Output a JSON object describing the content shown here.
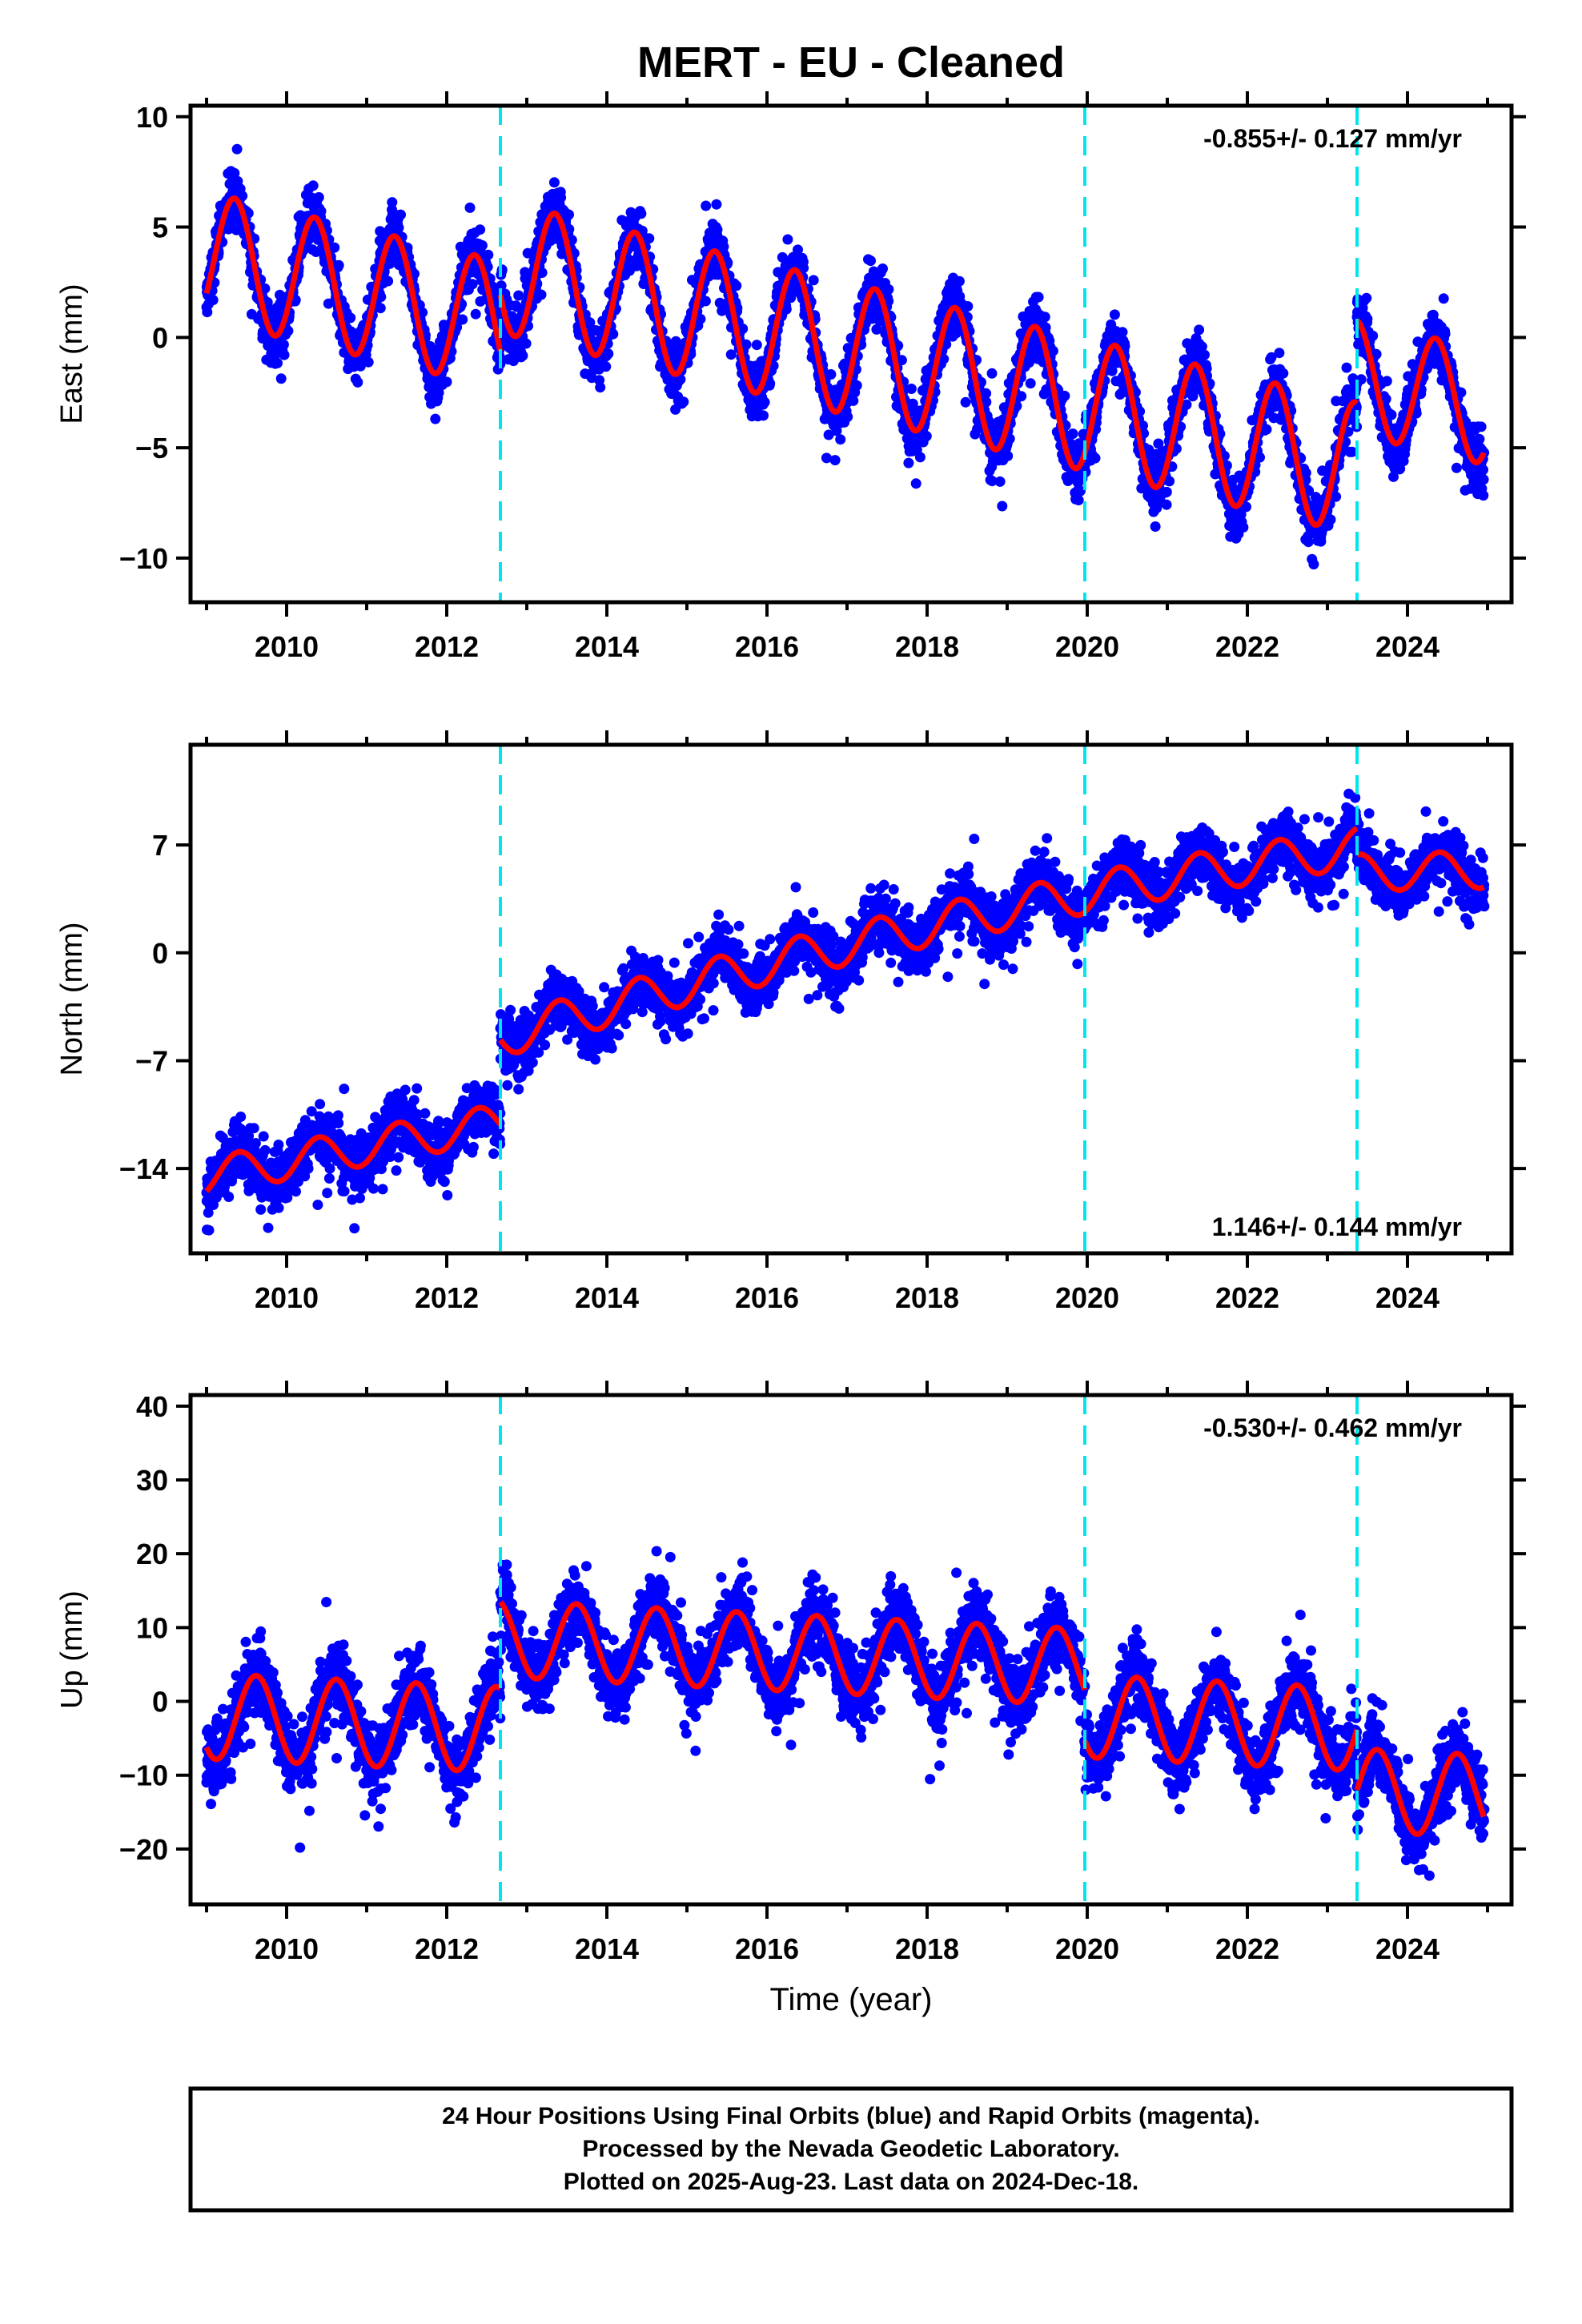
{
  "title": "MERT  - EU - Cleaned",
  "colors": {
    "data_points": "#0000ff",
    "model": "#ff0000",
    "breaks": "#00e5ee",
    "frame": "#000000"
  },
  "chart_data": [
    {
      "type": "scatter",
      "component": "East",
      "ylabel": "East (mm)",
      "xlabel": "",
      "xlim": [
        2008.8,
        2025.3
      ],
      "ylim": [
        -12,
        10.5
      ],
      "yticks": [
        10,
        5,
        0,
        -5,
        -10
      ],
      "xticks": [
        2010,
        2012,
        2014,
        2016,
        2018,
        2020,
        2022,
        2024
      ],
      "rate_text": "-0.855+/- 0.127 mm/yr",
      "rate_position": "top-right",
      "breaks": [
        2012.67,
        2019.97,
        2023.37
      ],
      "model": {
        "segments": [
          {
            "x0": 2009.0,
            "x1": 2012.67,
            "offset_mm": 3.7,
            "rate_mm_yr": -0.855,
            "amplitude_mm": 2.9,
            "peak_phase_yr": 0.35
          },
          {
            "x0": 2012.67,
            "x1": 2023.37,
            "offset_mm": 3.2,
            "rate_mm_yr": -0.855,
            "amplitude_mm": 3.0,
            "peak_phase_yr": 0.35
          },
          {
            "x0": 2023.37,
            "x1": 2024.96,
            "offset_mm": -1.8,
            "rate_mm_yr": -0.855,
            "amplitude_mm": 2.6,
            "peak_phase_yr": 0.35
          }
        ]
      },
      "scatter_noise_mm": 1.1
    },
    {
      "type": "scatter",
      "component": "North",
      "ylabel": "North (mm)",
      "xlabel": "",
      "xlim": [
        2008.8,
        2025.3
      ],
      "ylim": [
        -19.5,
        13.5
      ],
      "yticks": [
        7,
        0,
        -7,
        -14
      ],
      "xticks": [
        2010,
        2012,
        2014,
        2016,
        2018,
        2020,
        2022,
        2024
      ],
      "rate_text": "1.146+/- 0.144 mm/yr",
      "rate_position": "bottom-right",
      "breaks": [
        2012.67,
        2019.97,
        2023.37
      ],
      "model": {
        "segments": [
          {
            "x0": 2009.0,
            "x1": 2012.67,
            "start_mm": -14.5,
            "end_mm": -11.0,
            "amplitude_mm": 1.2,
            "peak_phase_yr": 0.4
          },
          {
            "x0": 2012.67,
            "x1": 2023.37,
            "start_mm": -5.5,
            "end_mm": 6.8,
            "amplitude_mm": 1.3,
            "peak_phase_yr": 0.4,
            "curvature": 0.35
          },
          {
            "x0": 2023.37,
            "x1": 2024.96,
            "start_mm": 5.2,
            "end_mm": 5.4,
            "amplitude_mm": 1.2,
            "peak_phase_yr": 0.4
          }
        ]
      },
      "scatter_noise_mm": 1.5
    },
    {
      "type": "scatter",
      "component": "Up",
      "ylabel": "Up (mm)",
      "xlabel": "Time (year)",
      "xlim": [
        2008.8,
        2025.3
      ],
      "ylim": [
        -27.5,
        41.5
      ],
      "yticks": [
        40,
        30,
        20,
        10,
        0,
        -10,
        -20
      ],
      "xticks": [
        2010,
        2012,
        2014,
        2016,
        2018,
        2020,
        2022,
        2024
      ],
      "rate_text": "-0.530+/- 0.462 mm/yr",
      "rate_position": "top-right",
      "breaks": [
        2012.67,
        2019.97,
        2023.37
      ],
      "model": {
        "segments": [
          {
            "x0": 2009.0,
            "x1": 2012.67,
            "offset_mm": -2.0,
            "rate_mm_yr": -0.5,
            "amplitude_mm": 5.8,
            "peak_phase_yr": 0.62
          },
          {
            "x0": 2012.67,
            "x1": 2019.97,
            "offset_mm": 8.5,
            "rate_mm_yr": -0.53,
            "amplitude_mm": 5.2,
            "peak_phase_yr": 0.62
          },
          {
            "x0": 2019.97,
            "x1": 2023.37,
            "offset_mm": -2.0,
            "rate_mm_yr": -0.53,
            "amplitude_mm": 5.6,
            "peak_phase_yr": 0.62
          },
          {
            "x0": 2023.37,
            "x1": 2024.96,
            "offset_mm": -12.0,
            "rate_mm_yr": -0.53,
            "amplitude_mm": 5.6,
            "peak_phase_yr": 0.62
          }
        ]
      },
      "scatter_noise_mm": 4.0
    }
  ],
  "footer": {
    "line1": "24 Hour Positions Using Final Orbits (blue) and Rapid Orbits (magenta).",
    "line2": "Processed by the Nevada Geodetic Laboratory.",
    "line3": "Plotted on 2025-Aug-23. Last data on 2024-Dec-18."
  }
}
